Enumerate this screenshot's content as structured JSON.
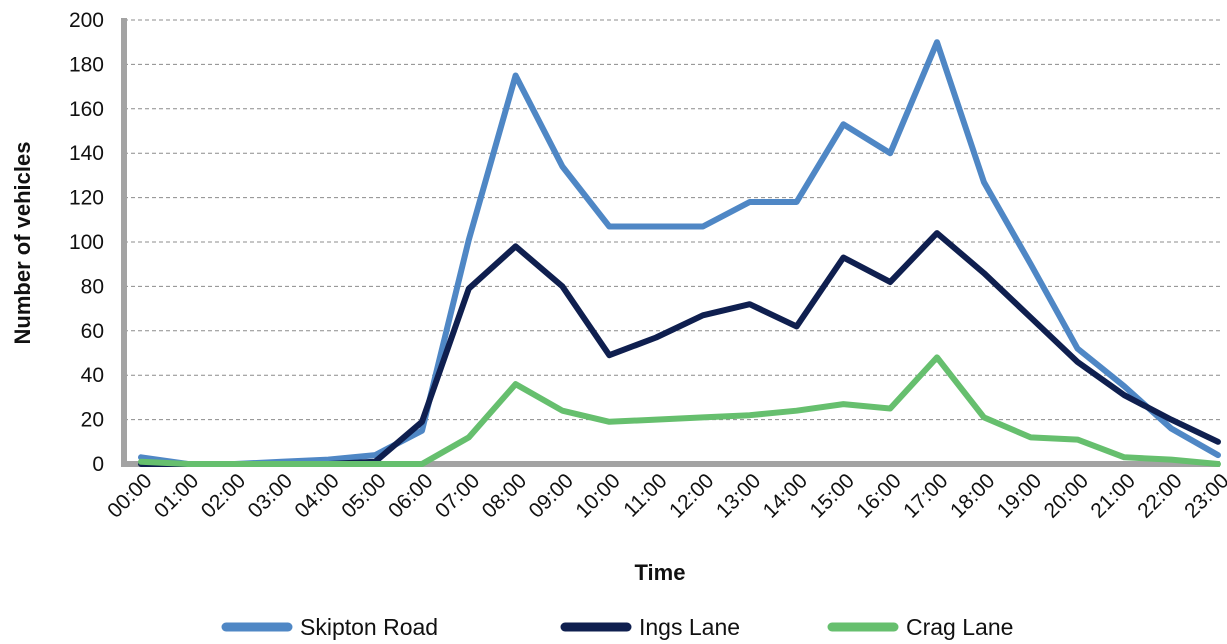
{
  "chart_data": {
    "type": "line",
    "title": "",
    "xlabel": "Time",
    "ylabel": "Number of vehicles",
    "ylim": [
      0,
      200
    ],
    "yticks": [
      0,
      20,
      40,
      60,
      80,
      100,
      120,
      140,
      160,
      180,
      200
    ],
    "grid": true,
    "legend_position": "bottom",
    "categories": [
      "00:00",
      "01:00",
      "02:00",
      "03:00",
      "04:00",
      "05:00",
      "06:00",
      "07:00",
      "08:00",
      "09:00",
      "10:00",
      "11:00",
      "12:00",
      "13:00",
      "14:00",
      "15:00",
      "16:00",
      "17:00",
      "18:00",
      "19:00",
      "20:00",
      "21:00",
      "22:00",
      "23:00"
    ],
    "series": [
      {
        "name": "Skipton Road",
        "color": "#4f87c5",
        "values": [
          3,
          0,
          0,
          1,
          2,
          4,
          15,
          101,
          175,
          134,
          107,
          107,
          107,
          118,
          118,
          153,
          140,
          190,
          127,
          90,
          52,
          35,
          16,
          4
        ]
      },
      {
        "name": "Ings Lane",
        "color": "#0f1f4f",
        "values": [
          0,
          0,
          0,
          0,
          0,
          1,
          19,
          79,
          98,
          80,
          49,
          57,
          67,
          72,
          62,
          93,
          82,
          104,
          86,
          66,
          46,
          31,
          20,
          10
        ]
      },
      {
        "name": "Crag Lane",
        "color": "#66bf6e",
        "values": [
          1,
          0,
          0,
          0,
          0,
          0,
          0,
          12,
          36,
          24,
          19,
          20,
          21,
          22,
          24,
          27,
          25,
          48,
          21,
          12,
          11,
          3,
          2,
          0
        ]
      }
    ]
  }
}
